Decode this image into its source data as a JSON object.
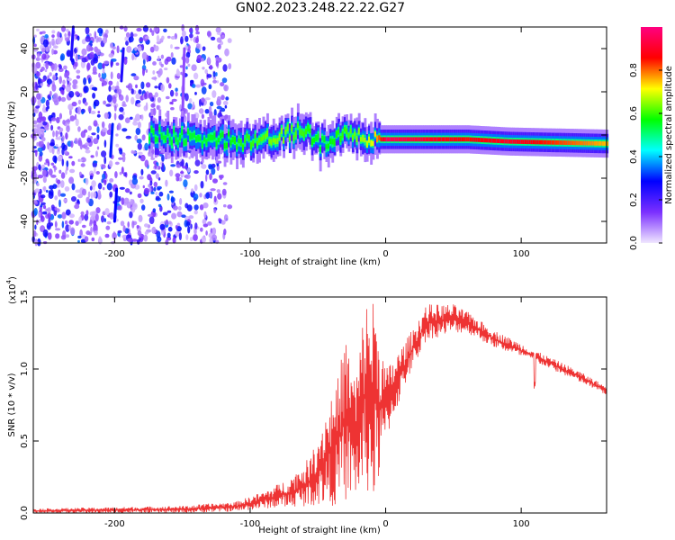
{
  "title": "GN02.2023.248.22.22.G27",
  "chart_data": [
    {
      "type": "heatmap",
      "xlabel": "Height of straight line (km)",
      "ylabel": "Frequency (Hz)",
      "xlim": [
        -260,
        163
      ],
      "ylim": [
        -50,
        50
      ],
      "xticks": [
        -200,
        -100,
        0,
        100
      ],
      "yticks": [
        -40,
        -20,
        0,
        20,
        40
      ],
      "colorbar": {
        "label": "Normalized spectral amplitude",
        "range": [
          0,
          1
        ],
        "ticks": [
          "0.0",
          "0.2",
          "0.4",
          "0.6",
          "0.8"
        ],
        "colormap": [
          "#f0e6ff",
          "#7b2fff",
          "#0000ff",
          "#00ffff",
          "#00ff00",
          "#ffff00",
          "#ff0000",
          "#ff0080"
        ]
      },
      "features": {
        "noisy_region_x": [
          -260,
          -125
        ],
        "main_band": [
          {
            "x": -175,
            "freq": 0,
            "amp": 0.55
          },
          {
            "x": -130,
            "freq": -2,
            "amp": 0.55
          },
          {
            "x": -100,
            "freq": -3,
            "amp": 0.6
          },
          {
            "x": -80,
            "freq": 0,
            "amp": 0.65
          },
          {
            "x": -60,
            "freq": 2,
            "amp": 0.6
          },
          {
            "x": -50,
            "freq": -4,
            "amp": 0.55
          },
          {
            "x": -30,
            "freq": 0,
            "amp": 0.6
          },
          {
            "x": -10,
            "freq": -2,
            "amp": 0.7
          },
          {
            "x": 0,
            "freq": -2,
            "amp": 0.95
          },
          {
            "x": 60,
            "freq": -2,
            "amp": 0.85
          },
          {
            "x": 90,
            "freq": -3,
            "amp": 0.9
          },
          {
            "x": 163,
            "freq": -4,
            "amp": 0.75
          }
        ]
      }
    },
    {
      "type": "line",
      "xlabel": "Height of straight line (km)",
      "ylabel": "SNR (10 * v/v)",
      "ylabel_multiplier": "(x10",
      "ylabel_exponent": "4",
      "ylabel_multiplier_close": ")",
      "xlim": [
        -260,
        163
      ],
      "ylim": [
        0,
        1.5
      ],
      "xticks": [
        -200,
        -100,
        0,
        100
      ],
      "yticks": [
        "0.0",
        "0.5",
        "1.0",
        "1.5"
      ],
      "series": [
        {
          "color": "#ee3333",
          "envelope": [
            {
              "x": -260,
              "lo": 0.0,
              "hi": 0.03
            },
            {
              "x": -150,
              "lo": 0.0,
              "hi": 0.05
            },
            {
              "x": -110,
              "lo": 0.01,
              "hi": 0.08
            },
            {
              "x": -90,
              "lo": 0.03,
              "hi": 0.15
            },
            {
              "x": -70,
              "lo": 0.04,
              "hi": 0.25
            },
            {
              "x": -55,
              "lo": 0.05,
              "hi": 0.4
            },
            {
              "x": -45,
              "lo": 0.05,
              "hi": 0.7
            },
            {
              "x": -35,
              "lo": 0.05,
              "hi": 0.95
            },
            {
              "x": -30,
              "lo": 0.08,
              "hi": 1.25
            },
            {
              "x": -22,
              "lo": 0.1,
              "hi": 0.95
            },
            {
              "x": -15,
              "lo": 0.15,
              "hi": 1.5
            },
            {
              "x": -8,
              "lo": 0.05,
              "hi": 1.5
            },
            {
              "x": 0,
              "lo": 0.5,
              "hi": 1.0
            },
            {
              "x": 15,
              "lo": 0.9,
              "hi": 1.2
            },
            {
              "x": 30,
              "lo": 1.2,
              "hi": 1.45
            },
            {
              "x": 50,
              "lo": 1.25,
              "hi": 1.45
            },
            {
              "x": 60,
              "lo": 1.25,
              "hi": 1.4
            },
            {
              "x": 80,
              "lo": 1.15,
              "hi": 1.27
            },
            {
              "x": 110,
              "lo": 1.05,
              "hi": 1.13
            },
            {
              "x": 140,
              "lo": 0.92,
              "hi": 1.0
            },
            {
              "x": 163,
              "lo": 0.82,
              "hi": 0.88
            }
          ]
        }
      ]
    }
  ]
}
